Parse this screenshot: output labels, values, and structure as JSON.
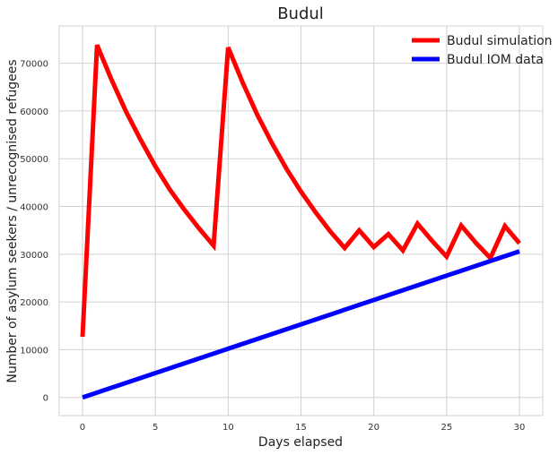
{
  "chart_data": {
    "type": "line",
    "title": "Budul",
    "xlabel": "Days elapsed",
    "ylabel": "Number of asylum seekers / unrecognised refugees",
    "xlim": [
      -1.6,
      31.6
    ],
    "ylim": [
      -3800,
      77800
    ],
    "xticks": [
      0,
      5,
      10,
      15,
      20,
      25,
      30
    ],
    "yticks": [
      0,
      10000,
      20000,
      30000,
      40000,
      50000,
      60000,
      70000
    ],
    "grid": true,
    "legend_placement": "top-right",
    "series": [
      {
        "name": "Budul simulation",
        "color": "#ff0000",
        "x": [
          0,
          1,
          2,
          3,
          4,
          5,
          6,
          7,
          8,
          9,
          10,
          11,
          12,
          13,
          14,
          15,
          16,
          17,
          18,
          19,
          20,
          21,
          22,
          23,
          24,
          25,
          26,
          27,
          28,
          29,
          30
        ],
        "y": [
          12700,
          73800,
          66500,
          59800,
          53900,
          48400,
          43500,
          39300,
          35400,
          31800,
          73300,
          65900,
          59200,
          53300,
          47900,
          43100,
          38800,
          34800,
          31300,
          35000,
          31500,
          34200,
          30800,
          36400,
          32800,
          29500,
          36000,
          32400,
          29200,
          35900,
          32300
        ]
      },
      {
        "name": "Budul IOM data",
        "color": "#0000ff",
        "x": [
          0,
          30
        ],
        "y": [
          0,
          30600
        ]
      }
    ]
  }
}
